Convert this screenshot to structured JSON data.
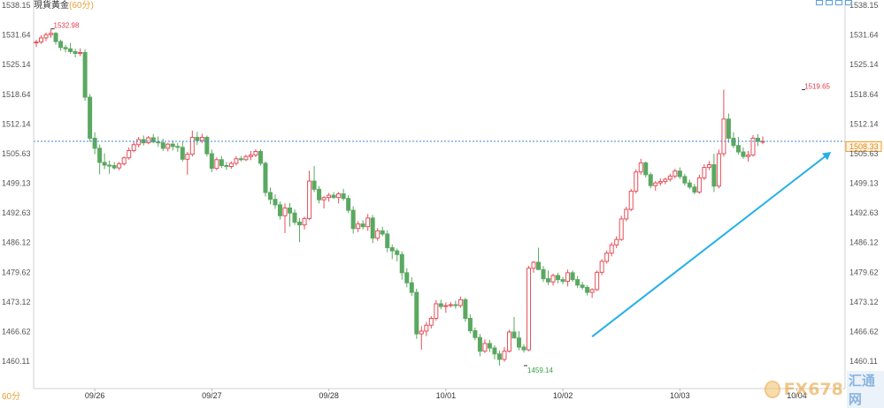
{
  "header": {
    "title": "現貨黃金",
    "interval": "(60分)"
  },
  "footer": {
    "interval_label": "60分"
  },
  "brand": {
    "name": "FX678",
    "sub": "汇通网"
  },
  "chart_data": {
    "type": "candlestick",
    "title": "",
    "ylim": [
      1455.0,
      1538.15
    ],
    "yticks": [
      1538.15,
      1531.64,
      1525.14,
      1518.64,
      1512.14,
      1505.63,
      1499.13,
      1492.63,
      1486.12,
      1479.62,
      1473.12,
      1466.62,
      1460.11
    ],
    "date_labels": [
      {
        "label": "09/26",
        "index": 12
      },
      {
        "label": "09/27",
        "index": 36
      },
      {
        "label": "09/28",
        "index": 60
      },
      {
        "label": "10/01",
        "index": 84
      },
      {
        "label": "10/02",
        "index": 108
      },
      {
        "label": "10/03",
        "index": 132
      },
      {
        "label": "10/04",
        "index": 156
      }
    ],
    "current_price": 1508.33,
    "current_price_label": "1508.33",
    "annotations": [
      {
        "label": "1532.98",
        "index": 3,
        "price": 1532.98,
        "kind": "high"
      },
      {
        "label": "1519.65",
        "index": 157,
        "price": 1519.65,
        "kind": "high"
      },
      {
        "label": "1459.14",
        "index": 100,
        "price": 1459.14,
        "kind": "low"
      }
    ],
    "trend_arrow": {
      "from": {
        "index": 114,
        "price": 1465.5
      },
      "to": {
        "index": 163,
        "price": 1506.0
      }
    },
    "colors": {
      "up": "#e5505a",
      "down": "#5aa861",
      "price_line": "#3b8ad0",
      "arrow": "#27b0e8",
      "high_label": "#e23a4a",
      "low_label": "#3aa04a"
    },
    "candles": [
      [
        1530.0,
        1530.6,
        1529.0,
        1530.1
      ],
      [
        1530.1,
        1531.6,
        1529.7,
        1531.0
      ],
      [
        1531.0,
        1532.2,
        1530.3,
        1531.7
      ],
      [
        1531.7,
        1532.98,
        1531.0,
        1532.0
      ],
      [
        1532.0,
        1532.3,
        1529.5,
        1530.2
      ],
      [
        1530.2,
        1530.6,
        1528.2,
        1528.9
      ],
      [
        1528.9,
        1529.5,
        1527.8,
        1528.6
      ],
      [
        1528.6,
        1529.9,
        1527.5,
        1528.0
      ],
      [
        1528.0,
        1528.6,
        1526.7,
        1527.6
      ],
      [
        1527.6,
        1528.7,
        1527.0,
        1527.8
      ],
      [
        1527.8,
        1528.5,
        1517.2,
        1518.0
      ],
      [
        1518.0,
        1518.7,
        1508.2,
        1509.0
      ],
      [
        1509.0,
        1510.3,
        1505.5,
        1506.8
      ],
      [
        1506.8,
        1507.6,
        1501.1,
        1503.7
      ],
      [
        1503.7,
        1505.7,
        1502.2,
        1503.1
      ],
      [
        1503.1,
        1504.1,
        1501.2,
        1503.0
      ],
      [
        1503.0,
        1503.8,
        1502.1,
        1502.5
      ],
      [
        1502.5,
        1503.8,
        1502.0,
        1503.4
      ],
      [
        1503.4,
        1505.0,
        1503.0,
        1504.7
      ],
      [
        1504.7,
        1507.0,
        1504.3,
        1506.3
      ],
      [
        1506.3,
        1508.2,
        1505.9,
        1507.6
      ],
      [
        1507.6,
        1509.3,
        1507.0,
        1508.7
      ],
      [
        1508.7,
        1509.6,
        1507.4,
        1508.0
      ],
      [
        1508.0,
        1509.5,
        1507.7,
        1509.1
      ],
      [
        1509.1,
        1509.9,
        1507.9,
        1508.2
      ],
      [
        1508.2,
        1509.4,
        1507.1,
        1508.0
      ],
      [
        1508.0,
        1508.9,
        1506.2,
        1506.8
      ],
      [
        1506.8,
        1508.0,
        1506.1,
        1507.7
      ],
      [
        1507.7,
        1508.5,
        1506.3,
        1507.2
      ],
      [
        1507.2,
        1508.0,
        1506.0,
        1507.0
      ],
      [
        1507.0,
        1508.2,
        1503.9,
        1504.4
      ],
      [
        1504.4,
        1506.0,
        1501.0,
        1505.5
      ],
      [
        1505.5,
        1510.7,
        1505.0,
        1509.2
      ],
      [
        1509.2,
        1510.4,
        1507.5,
        1508.5
      ],
      [
        1508.5,
        1510.0,
        1507.9,
        1509.2
      ],
      [
        1509.2,
        1509.6,
        1505.0,
        1505.6
      ],
      [
        1505.6,
        1506.5,
        1501.6,
        1502.4
      ],
      [
        1502.4,
        1504.8,
        1502.0,
        1504.3
      ],
      [
        1504.3,
        1505.1,
        1502.5,
        1503.0
      ],
      [
        1503.0,
        1503.8,
        1502.1,
        1502.8
      ],
      [
        1502.8,
        1503.9,
        1502.3,
        1503.5
      ],
      [
        1503.5,
        1505.1,
        1503.0,
        1504.5
      ],
      [
        1504.5,
        1505.1,
        1503.9,
        1504.3
      ],
      [
        1504.3,
        1505.4,
        1504.0,
        1505.0
      ],
      [
        1505.0,
        1506.2,
        1504.2,
        1505.3
      ],
      [
        1505.3,
        1506.6,
        1504.9,
        1506.1
      ],
      [
        1506.1,
        1506.6,
        1503.0,
        1503.5
      ],
      [
        1503.5,
        1503.9,
        1496.2,
        1497.1
      ],
      [
        1497.1,
        1498.2,
        1494.5,
        1495.6
      ],
      [
        1495.6,
        1496.7,
        1493.5,
        1494.4
      ],
      [
        1494.4,
        1495.1,
        1491.2,
        1492.0
      ],
      [
        1492.0,
        1494.7,
        1488.2,
        1493.7
      ],
      [
        1493.7,
        1494.8,
        1489.6,
        1492.6
      ],
      [
        1492.6,
        1493.4,
        1490.0,
        1490.6
      ],
      [
        1490.6,
        1491.5,
        1486.2,
        1490.0
      ],
      [
        1490.0,
        1491.8,
        1489.0,
        1491.4
      ],
      [
        1491.4,
        1501.9,
        1491.0,
        1499.6
      ],
      [
        1499.6,
        1502.9,
        1497.2,
        1497.8
      ],
      [
        1497.8,
        1498.5,
        1494.7,
        1495.5
      ],
      [
        1495.5,
        1496.3,
        1493.6,
        1496.0
      ],
      [
        1496.0,
        1497.0,
        1495.1,
        1496.5
      ],
      [
        1496.5,
        1497.2,
        1495.7,
        1496.0
      ],
      [
        1496.0,
        1497.2,
        1494.7,
        1496.8
      ],
      [
        1496.8,
        1497.9,
        1495.3,
        1495.8
      ],
      [
        1495.8,
        1496.5,
        1492.6,
        1493.2
      ],
      [
        1493.2,
        1494.1,
        1488.1,
        1489.2
      ],
      [
        1489.2,
        1490.8,
        1488.4,
        1490.2
      ],
      [
        1490.2,
        1491.0,
        1489.0,
        1489.6
      ],
      [
        1489.6,
        1492.4,
        1488.7,
        1491.5
      ],
      [
        1491.5,
        1492.2,
        1486.0,
        1487.1
      ],
      [
        1487.1,
        1489.3,
        1486.5,
        1488.7
      ],
      [
        1488.7,
        1489.6,
        1487.5,
        1488.0
      ],
      [
        1488.0,
        1488.8,
        1484.0,
        1485.0
      ],
      [
        1485.0,
        1485.7,
        1482.5,
        1484.3
      ],
      [
        1484.3,
        1484.8,
        1482.0,
        1483.5
      ],
      [
        1483.5,
        1484.2,
        1478.0,
        1479.5
      ],
      [
        1479.5,
        1480.5,
        1476.3,
        1477.3
      ],
      [
        1477.3,
        1478.5,
        1474.4,
        1475.2
      ],
      [
        1475.2,
        1476.0,
        1465.0,
        1466.1
      ],
      [
        1466.1,
        1467.8,
        1462.6,
        1466.7
      ],
      [
        1466.7,
        1468.7,
        1465.6,
        1468.0
      ],
      [
        1468.0,
        1470.0,
        1467.3,
        1469.5
      ],
      [
        1469.5,
        1473.5,
        1469.0,
        1472.7
      ],
      [
        1472.7,
        1473.6,
        1471.5,
        1472.1
      ],
      [
        1472.1,
        1473.0,
        1470.7,
        1472.3
      ],
      [
        1472.3,
        1473.1,
        1471.9,
        1472.5
      ],
      [
        1472.5,
        1473.4,
        1471.6,
        1472.3
      ],
      [
        1472.3,
        1474.3,
        1471.8,
        1473.6
      ],
      [
        1473.6,
        1474.0,
        1468.8,
        1469.5
      ],
      [
        1469.5,
        1470.4,
        1466.2,
        1466.8
      ],
      [
        1466.8,
        1467.5,
        1464.7,
        1465.3
      ],
      [
        1465.3,
        1466.1,
        1461.2,
        1462.3
      ],
      [
        1462.3,
        1464.9,
        1461.9,
        1464.0
      ],
      [
        1464.0,
        1464.8,
        1462.1,
        1463.0
      ],
      [
        1463.0,
        1463.6,
        1460.5,
        1461.7
      ],
      [
        1461.7,
        1462.5,
        1459.14,
        1460.5
      ],
      [
        1460.5,
        1463.2,
        1460.0,
        1462.3
      ],
      [
        1462.3,
        1467.0,
        1462.0,
        1466.5
      ],
      [
        1466.5,
        1469.8,
        1466.0,
        1465.2
      ],
      [
        1465.2,
        1466.7,
        1462.5,
        1463.2
      ],
      [
        1463.2,
        1463.8,
        1462.0,
        1462.6
      ],
      [
        1462.6,
        1481.0,
        1462.3,
        1480.5
      ],
      [
        1480.5,
        1482.1,
        1479.5,
        1481.8
      ],
      [
        1481.8,
        1485.0,
        1480.5,
        1480.2
      ],
      [
        1480.2,
        1481.0,
        1477.5,
        1478.2
      ],
      [
        1478.2,
        1480.0,
        1476.8,
        1477.5
      ],
      [
        1477.5,
        1479.3,
        1476.7,
        1478.9
      ],
      [
        1478.9,
        1479.5,
        1477.2,
        1478.0
      ],
      [
        1478.0,
        1478.6,
        1477.0,
        1477.6
      ],
      [
        1477.6,
        1480.2,
        1476.5,
        1479.5
      ],
      [
        1479.5,
        1480.0,
        1477.5,
        1478.0
      ],
      [
        1478.0,
        1478.8,
        1476.2,
        1476.8
      ],
      [
        1476.8,
        1477.5,
        1475.8,
        1476.3
      ],
      [
        1476.3,
        1476.8,
        1474.5,
        1475.2
      ],
      [
        1475.2,
        1476.1,
        1474.0,
        1475.8
      ],
      [
        1475.8,
        1480.0,
        1475.5,
        1479.6
      ],
      [
        1479.6,
        1482.5,
        1479.0,
        1482.0
      ],
      [
        1482.0,
        1484.4,
        1481.5,
        1483.8
      ],
      [
        1483.8,
        1486.2,
        1483.1,
        1485.6
      ],
      [
        1485.6,
        1487.5,
        1484.9,
        1486.8
      ],
      [
        1486.8,
        1492.0,
        1486.5,
        1491.3
      ],
      [
        1491.3,
        1494.0,
        1490.8,
        1493.4
      ],
      [
        1493.4,
        1497.9,
        1493.0,
        1497.4
      ],
      [
        1497.4,
        1502.2,
        1496.9,
        1501.6
      ],
      [
        1501.6,
        1504.5,
        1501.0,
        1503.6
      ],
      [
        1503.6,
        1503.9,
        1500.4,
        1501.0
      ],
      [
        1501.0,
        1501.5,
        1498.0,
        1498.6
      ],
      [
        1498.6,
        1499.6,
        1497.5,
        1499.2
      ],
      [
        1499.2,
        1500.2,
        1498.6,
        1499.5
      ],
      [
        1499.5,
        1500.4,
        1498.9,
        1500.0
      ],
      [
        1500.0,
        1501.2,
        1499.5,
        1500.7
      ],
      [
        1500.7,
        1502.3,
        1500.2,
        1501.8
      ],
      [
        1501.8,
        1502.6,
        1500.1,
        1500.6
      ],
      [
        1500.6,
        1501.2,
        1498.6,
        1499.2
      ],
      [
        1499.2,
        1499.9,
        1497.8,
        1498.3
      ],
      [
        1498.3,
        1499.0,
        1496.7,
        1497.2
      ],
      [
        1497.2,
        1501.0,
        1496.8,
        1500.3
      ],
      [
        1500.3,
        1503.3,
        1499.8,
        1502.6
      ],
      [
        1502.6,
        1504.0,
        1502.0,
        1503.2
      ],
      [
        1503.2,
        1505.6,
        1497.2,
        1498.5
      ],
      [
        1498.5,
        1506.5,
        1498.0,
        1505.6
      ],
      [
        1505.6,
        1519.65,
        1505.0,
        1513.2
      ],
      [
        1513.2,
        1514.4,
        1508.0,
        1509.0
      ],
      [
        1509.0,
        1510.3,
        1506.8,
        1507.4
      ],
      [
        1507.4,
        1509.3,
        1505.4,
        1506.0
      ],
      [
        1506.0,
        1507.0,
        1504.5,
        1505.0
      ],
      [
        1505.0,
        1506.2,
        1503.9,
        1505.3
      ],
      [
        1505.3,
        1509.7,
        1505.0,
        1509.0
      ],
      [
        1509.0,
        1509.9,
        1507.3,
        1508.3
      ],
      [
        1508.3,
        1509.4,
        1507.7,
        1508.33
      ]
    ]
  }
}
